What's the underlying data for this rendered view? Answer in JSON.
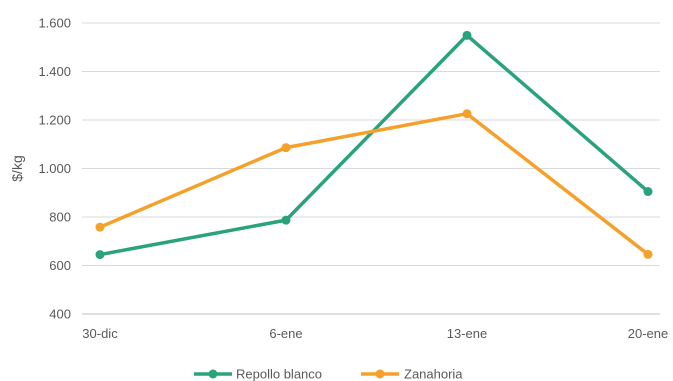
{
  "chart_data": {
    "type": "line",
    "title": "",
    "xlabel": "",
    "ylabel": "$/kg",
    "ylim": [
      400,
      1600
    ],
    "yticks": [
      "400",
      "600",
      "800",
      "1.000",
      "1.200",
      "1.400",
      "1.600"
    ],
    "yticks_values": [
      400,
      600,
      800,
      1000,
      1200,
      1400,
      1600
    ],
    "categories": [
      "30-dic",
      "6-ene",
      "13-ene",
      "20-ene"
    ],
    "grid": true,
    "legend_position": "bottom",
    "series": [
      {
        "name": "Repollo blanco",
        "color": "#2aa37d",
        "values": [
          645,
          787,
          1549,
          905
        ]
      },
      {
        "name": "Zanahoria",
        "color": "#f5a02a",
        "values": [
          758,
          1086,
          1226,
          646
        ]
      }
    ]
  }
}
